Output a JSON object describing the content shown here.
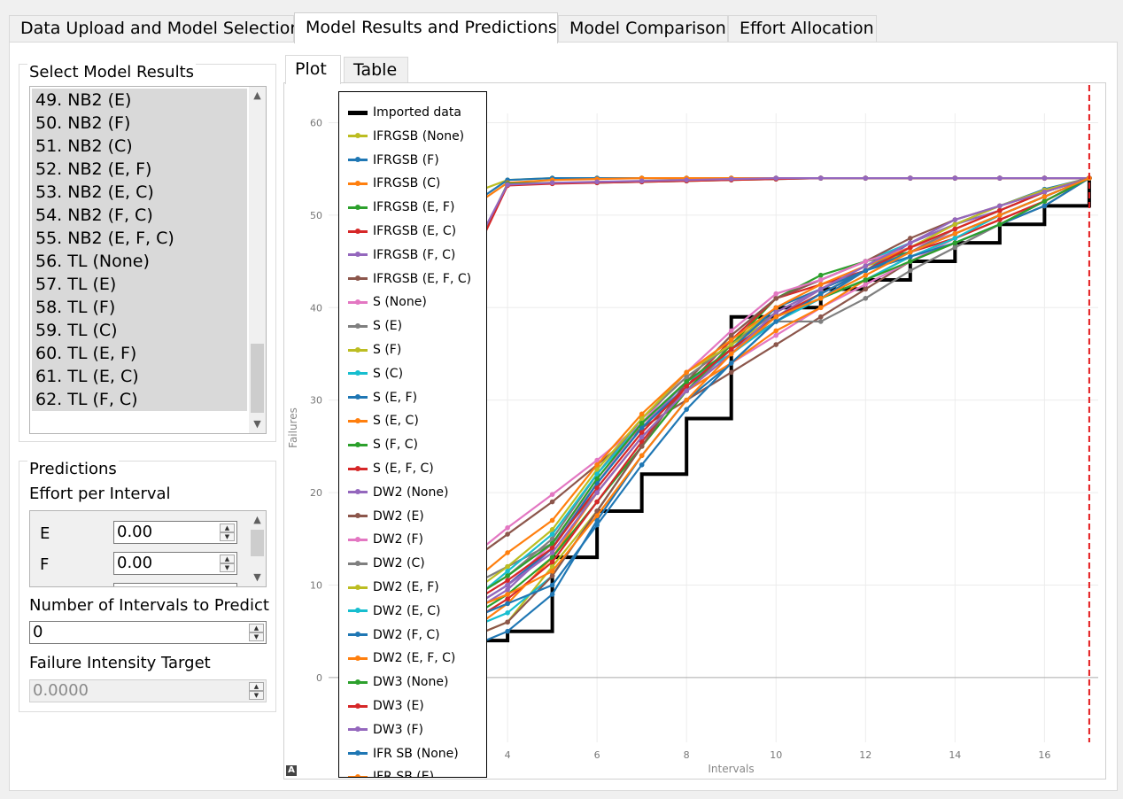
{
  "tabs": [
    "Data Upload and Model Selection",
    "Model Results and Predictions",
    "Model Comparison",
    "Effort Allocation"
  ],
  "active_tab": 1,
  "select_model": {
    "title": "Select Model Results",
    "items": [
      "49. NB2 (E)",
      "50. NB2 (F)",
      "51. NB2 (C)",
      "52. NB2 (E, F)",
      "53. NB2 (E, C)",
      "54. NB2 (F, C)",
      "55. NB2 (E, F, C)",
      "56. TL (None)",
      "57. TL (E)",
      "58. TL (F)",
      "59. TL (C)",
      "60. TL (E, F)",
      "61. TL (E, C)",
      "62. TL (F, C)"
    ]
  },
  "predictions": {
    "title": "Predictions",
    "effort_label": "Effort per Interval",
    "efforts": [
      {
        "name": "E",
        "value": "0.00"
      },
      {
        "name": "F",
        "value": "0.00"
      }
    ],
    "intervals_label": "Number of Intervals to Predict",
    "intervals_value": "0",
    "target_label": "Failure Intensity Target",
    "target_value": "0.0000"
  },
  "subtabs": [
    "Plot",
    "Table"
  ],
  "chart_data": {
    "type": "line",
    "title": "",
    "xlabel": "Intervals",
    "ylabel": "Failures",
    "xlim": [
      0,
      17.2
    ],
    "ylim": [
      -7,
      61
    ],
    "xticks": [
      2,
      4,
      6,
      8,
      10,
      12,
      14,
      16
    ],
    "yticks": [
      0,
      10,
      20,
      30,
      40,
      50,
      60
    ],
    "grid": true,
    "vline_x": 17,
    "vline_color": "#e41a1c",
    "imported": {
      "name": "Imported data",
      "x": [
        1,
        2,
        3,
        4,
        5,
        6,
        7,
        8,
        9,
        10,
        11,
        12,
        13,
        14,
        15,
        16,
        17
      ],
      "y": [
        1,
        2,
        4,
        5,
        13,
        18,
        22,
        28,
        39,
        40,
        42,
        43,
        45,
        47,
        49,
        51,
        54
      ]
    },
    "legend": [
      "Imported data",
      "IFRGSB (None)",
      "IFRGSB (F)",
      "IFRGSB (C)",
      "IFRGSB (E, F)",
      "IFRGSB (E, C)",
      "IFRGSB (F, C)",
      "IFRGSB (E, F, C)",
      "S (None)",
      "S (E)",
      "S (F)",
      "S (C)",
      "S (E, F)",
      "S (E, C)",
      "S (F, C)",
      "S (E, F, C)",
      "DW2 (None)",
      "DW2 (E)",
      "DW2 (F)",
      "DW2 (C)",
      "DW2 (E, F)",
      "DW2 (E, C)",
      "DW2 (F, C)",
      "DW2 (E, F, C)",
      "DW3 (None)",
      "DW3 (E)",
      "DW3 (F)",
      "IFR SB (None)",
      "IFR SB (E)"
    ],
    "series_colors": [
      "#bcbd22",
      "#1f77b4",
      "#ff7f0e",
      "#2ca02c",
      "#d62728",
      "#9467bd",
      "#8c564b",
      "#e377c2",
      "#7f7f7f",
      "#bcbd22",
      "#17becf",
      "#1f77b4",
      "#ff7f0e",
      "#2ca02c",
      "#d62728",
      "#9467bd",
      "#8c564b",
      "#e377c2",
      "#7f7f7f",
      "#bcbd22",
      "#17becf",
      "#1f77b4",
      "#ff7f0e",
      "#2ca02c",
      "#d62728",
      "#9467bd",
      "#1f77b4",
      "#ff7f0e"
    ],
    "series": [
      {
        "values": [
          2.5,
          40,
          52,
          53.8,
          54,
          54,
          54,
          54,
          54,
          54,
          54,
          54,
          54,
          54,
          54,
          54,
          54
        ]
      },
      {
        "values": [
          3.8,
          39,
          50.5,
          53.8,
          54,
          54,
          54,
          54,
          54,
          54,
          54,
          54,
          54,
          54,
          54,
          54,
          54
        ]
      },
      {
        "values": [
          3,
          39,
          50.2,
          53.5,
          53.8,
          53.9,
          54,
          54,
          54,
          54,
          54,
          54,
          54,
          54,
          54,
          54,
          54
        ]
      },
      {
        "values": [
          1,
          8,
          43.5,
          53.4,
          53.5,
          53.5,
          53.6,
          53.7,
          53.8,
          53.9,
          54,
          54,
          54,
          54,
          54,
          54,
          54
        ]
      },
      {
        "values": [
          0.5,
          6,
          43,
          53.2,
          53.4,
          53.5,
          53.6,
          53.7,
          53.8,
          53.9,
          54,
          54,
          54,
          54,
          54,
          54,
          54
        ]
      },
      {
        "values": [
          0.8,
          12,
          44,
          53.3,
          53.5,
          53.6,
          53.7,
          53.8,
          53.9,
          54,
          54,
          54,
          54,
          54,
          54,
          54,
          54
        ]
      },
      {
        "values": [
          1,
          7,
          12,
          15.5,
          19,
          23,
          27,
          30,
          33,
          36,
          39,
          42,
          45,
          47,
          49,
          51,
          54
        ]
      },
      {
        "values": [
          1.5,
          7,
          12.3,
          16.2,
          19.8,
          23.5,
          27.5,
          31,
          34,
          37,
          40,
          42.5,
          45,
          47.5,
          49.5,
          51.5,
          54
        ]
      },
      {
        "values": [
          3,
          6.5,
          9.5,
          12,
          14.5,
          20,
          26,
          31,
          35.5,
          38.5,
          38.5,
          41,
          44,
          46.5,
          49,
          51.5,
          54
        ]
      },
      {
        "values": [
          0.5,
          2.5,
          4,
          6,
          12,
          18,
          25,
          31,
          36,
          40,
          42,
          44.5,
          46,
          48,
          50,
          52,
          54
        ]
      },
      {
        "values": [
          1,
          3,
          5,
          7,
          11,
          18,
          25,
          32,
          37,
          41,
          43,
          45,
          47,
          49,
          50.5,
          52.5,
          54
        ]
      },
      {
        "values": [
          0.5,
          2,
          3,
          5,
          9,
          17,
          24,
          30,
          34,
          38.5,
          41,
          44,
          47,
          49,
          51,
          52.8,
          54
        ]
      },
      {
        "values": [
          0.8,
          2.5,
          4.5,
          8,
          13,
          20,
          26,
          31,
          34,
          37.5,
          40,
          43,
          45.5,
          47.5,
          49.5,
          51.5,
          54
        ]
      },
      {
        "values": [
          1.2,
          3.5,
          6,
          9,
          13,
          19,
          25,
          31,
          36,
          41,
          43.5,
          45,
          46,
          48,
          50,
          52,
          54
        ]
      },
      {
        "values": [
          0.8,
          3,
          5.5,
          8.5,
          12.5,
          19,
          25.5,
          31.5,
          36.5,
          41,
          42.5,
          44,
          46,
          47.5,
          49.5,
          51.5,
          54
        ]
      },
      {
        "values": [
          1,
          3.5,
          6.5,
          9.5,
          14,
          21,
          27,
          32,
          35.5,
          39,
          42,
          44.5,
          47,
          49,
          50.5,
          52.5,
          54
        ]
      },
      {
        "values": [
          0.5,
          2,
          4,
          6,
          11,
          18,
          25,
          32,
          37,
          41,
          43,
          45,
          47.5,
          49.5,
          51,
          52.5,
          54
        ]
      },
      {
        "values": [
          1.5,
          4,
          7,
          10,
          14.5,
          21,
          27.5,
          33,
          37.5,
          41.5,
          43,
          45,
          46.5,
          48,
          50,
          52,
          54
        ]
      },
      {
        "values": [
          1,
          4.5,
          8,
          11,
          15,
          22,
          28,
          32.5,
          36,
          39.5,
          42,
          44,
          46,
          48.5,
          50.5,
          52.5,
          54
        ]
      },
      {
        "values": [
          2,
          5,
          8.5,
          12,
          16,
          22.5,
          28,
          33,
          36,
          39,
          41.5,
          44,
          46.5,
          49,
          51,
          52.7,
          54
        ]
      },
      {
        "values": [
          1.2,
          4,
          7.5,
          11.5,
          15.5,
          22,
          27.5,
          32,
          35,
          38.5,
          41,
          43,
          45.5,
          47.5,
          50,
          52,
          54
        ]
      },
      {
        "values": [
          0.8,
          3.5,
          7,
          10,
          14,
          21,
          27,
          31.5,
          35.5,
          40,
          42,
          44,
          45.5,
          47,
          49,
          51,
          54
        ]
      },
      {
        "values": [
          1.5,
          5.5,
          9.5,
          13.5,
          17,
          23,
          28.5,
          33,
          36.5,
          40,
          42.5,
          44.5,
          46.5,
          48.5,
          50.5,
          52.5,
          54
        ]
      },
      {
        "values": [
          2,
          5,
          8,
          11,
          14.5,
          21.5,
          27.5,
          32,
          35.5,
          39,
          41,
          43,
          45,
          47,
          49,
          51.5,
          54
        ]
      },
      {
        "values": [
          1.5,
          4.5,
          7.5,
          10.5,
          14,
          20.5,
          26.5,
          31.5,
          35.5,
          39,
          41.5,
          44,
          46.5,
          48.5,
          50.5,
          52.5,
          54
        ]
      },
      {
        "values": [
          1,
          4,
          7,
          10,
          13.5,
          20,
          26,
          31,
          35,
          39.5,
          42,
          44.5,
          47,
          49.5,
          51,
          52.5,
          54
        ]
      },
      {
        "values": [
          2,
          4,
          6,
          8,
          10,
          16.5,
          23,
          29,
          34,
          38.5,
          41.5,
          44,
          46,
          48,
          50,
          52,
          54
        ]
      },
      {
        "values": [
          2.2,
          5,
          7,
          9,
          11.5,
          17.5,
          24,
          30,
          35,
          39,
          41,
          43.5,
          46,
          48,
          50,
          52,
          54
        ]
      }
    ]
  }
}
